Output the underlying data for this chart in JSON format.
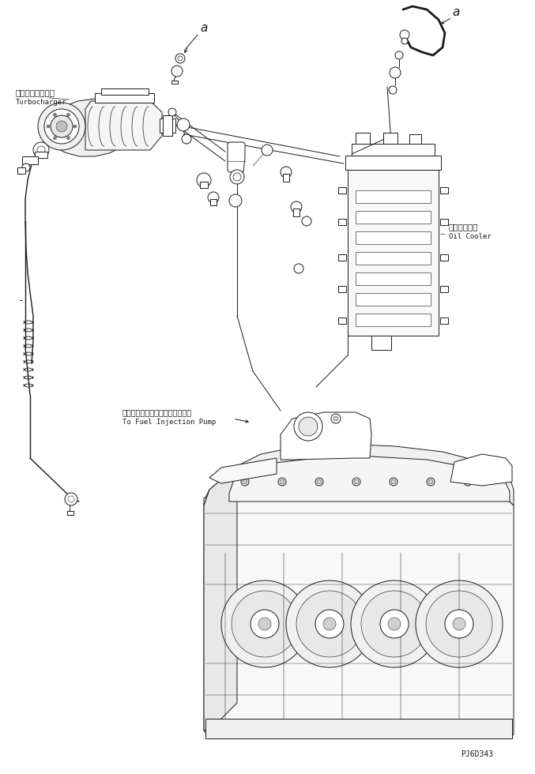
{
  "bg_color": "#ffffff",
  "line_color": "#1a1a1a",
  "fig_width": 6.77,
  "fig_height": 9.8,
  "dpi": 100,
  "part_code": "PJ6D343",
  "label_turbocharger_jp": "ターボチャージャ",
  "label_turbocharger_en": "Turbocharger",
  "label_oilcooler_jp": "オイルクーラ",
  "label_oilcooler_en": "Oil Cooler",
  "label_fuelpump_jp": "フェルインジェクションポンプへ",
  "label_fuelpump_en": "To Fuel Injection Pump",
  "annotation_a": "a"
}
